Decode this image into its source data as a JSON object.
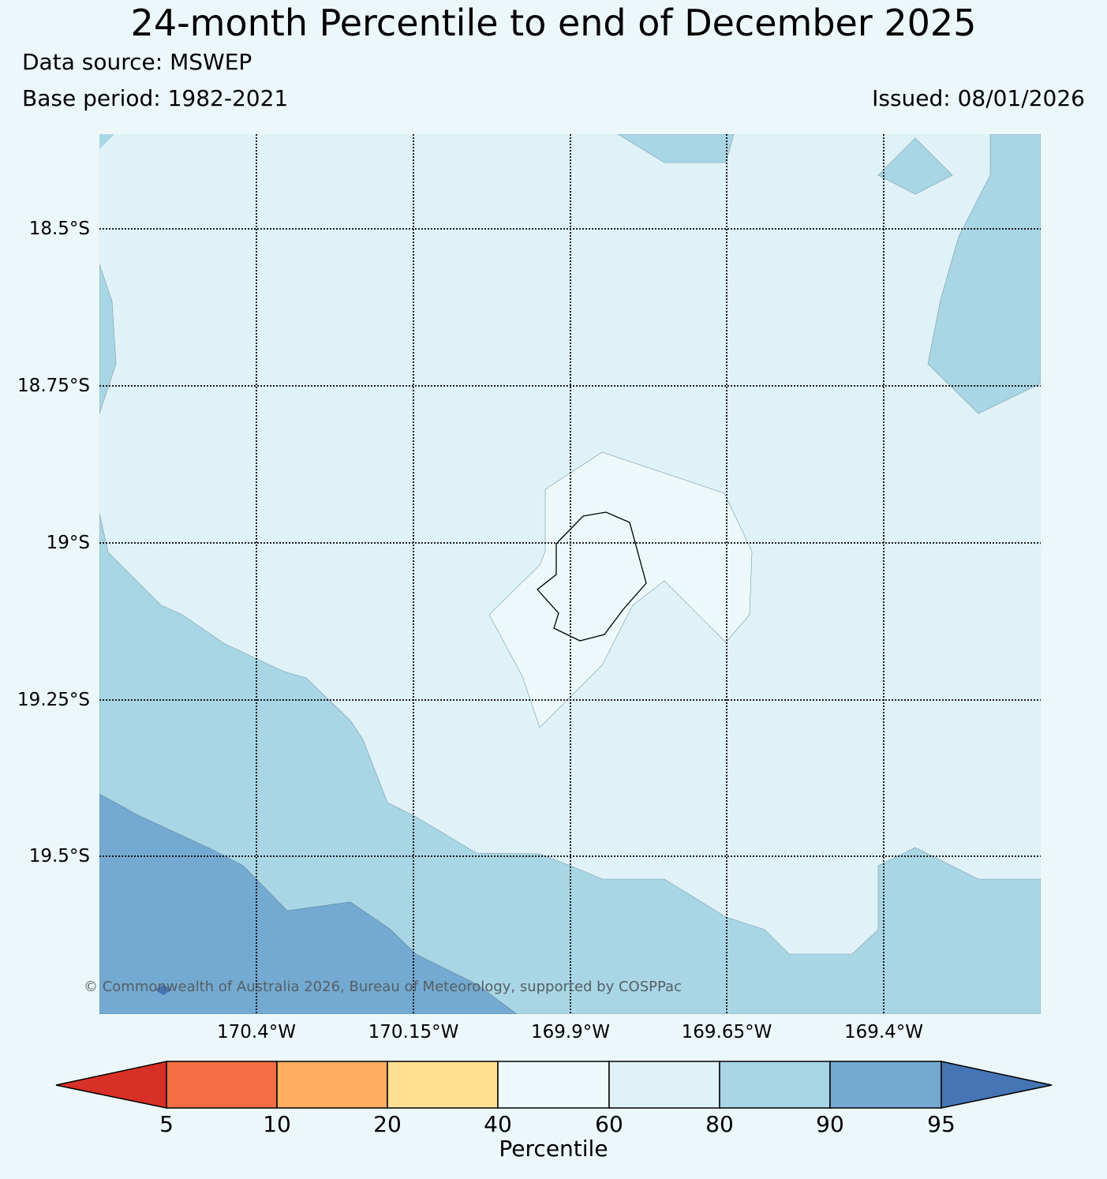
{
  "title": "24-month Percentile to end of December 2025",
  "data_source": "Data source: MSWEP",
  "base_period": "Base period: 1982-2021",
  "issued": "Issued: 08/01/2026",
  "copyright": "© Commonwealth of Australia 2026, Bureau of Meteorology, supported by COSPPac",
  "map": {
    "lat_labels": [
      "18.5°S",
      "18.75°S",
      "19°S",
      "19.25°S",
      "19.5°S"
    ],
    "lon_labels": [
      "170.4°W",
      "170.15°W",
      "169.9°W",
      "169.65°W",
      "169.4°W"
    ],
    "region_colors": {
      "p60_80": "#dff2f8",
      "p40_60": "#ecf8fa",
      "p80_90": "#a9d6e5",
      "p90_95": "#74aad1",
      "p95_plus": "#4575b4"
    }
  },
  "colorbar": {
    "label": "Percentile",
    "ticks": [
      "5",
      "10",
      "20",
      "40",
      "60",
      "80",
      "90",
      "95"
    ],
    "colors": [
      "#d73027",
      "#f46d43",
      "#fdae61",
      "#fee090",
      "#ecf8fa",
      "#dff2f8",
      "#a9d6e5",
      "#74aad1",
      "#4575b4"
    ]
  }
}
